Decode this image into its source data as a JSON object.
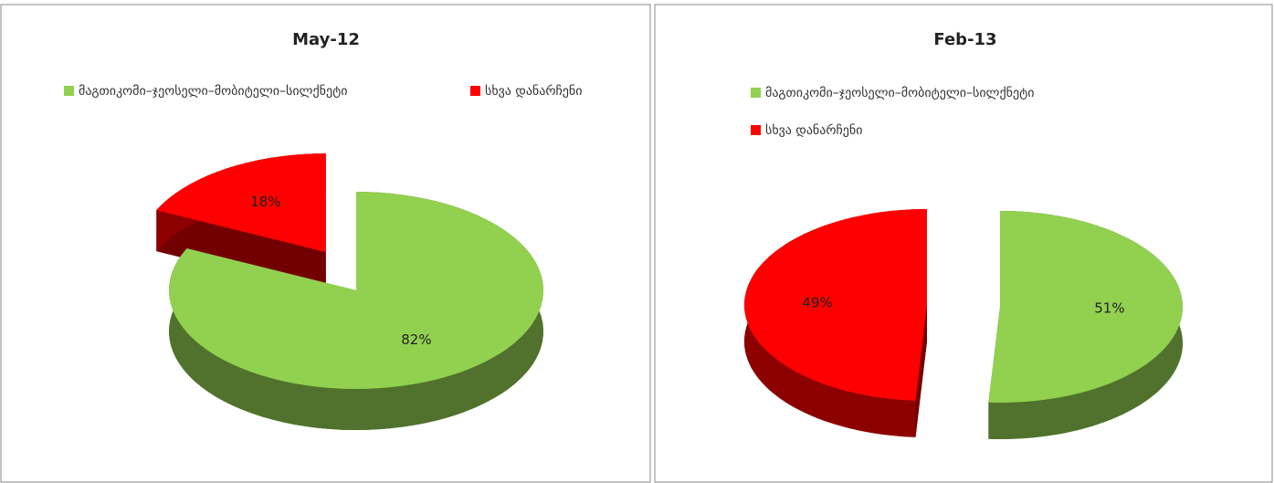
{
  "chart_data": [
    {
      "type": "pie",
      "title": "May-12",
      "categories": [
        "მაგთიკომი–ჯეოსელი–მობიტელი–სილქნეტი",
        "სხვა დანარჩენი"
      ],
      "values": [
        82,
        18
      ],
      "value_labels": [
        "82%",
        "18%"
      ],
      "colors": [
        "#92d050",
        "#ff0000"
      ]
    },
    {
      "type": "pie",
      "title": "Feb-13",
      "categories": [
        "მაგთიკომი–ჯეოსელი–მობიტელი–სილქნეტი",
        "სხვა დანარჩენი"
      ],
      "values": [
        51,
        49
      ],
      "value_labels": [
        "51%",
        "49%"
      ],
      "colors": [
        "#92d050",
        "#ff0000"
      ]
    }
  ]
}
